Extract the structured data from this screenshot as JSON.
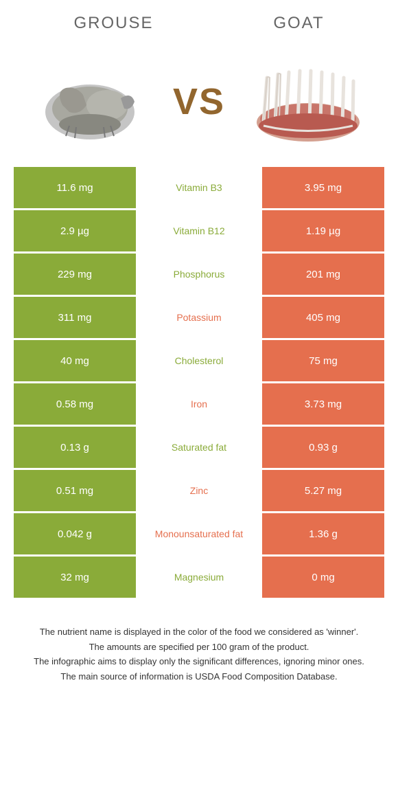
{
  "colors": {
    "green": "#8aab39",
    "orange": "#e56f4e",
    "text_muted": "#666666"
  },
  "header": {
    "left": "GROUSE",
    "right": "GOAT",
    "vs": "VS"
  },
  "rows": [
    {
      "left": "11.6 mg",
      "center": "Vitamin B3",
      "right": "3.95 mg",
      "winner": "left"
    },
    {
      "left": "2.9 µg",
      "center": "Vitamin B12",
      "right": "1.19 µg",
      "winner": "left"
    },
    {
      "left": "229 mg",
      "center": "Phosphorus",
      "right": "201 mg",
      "winner": "left"
    },
    {
      "left": "311 mg",
      "center": "Potassium",
      "right": "405 mg",
      "winner": "right"
    },
    {
      "left": "40 mg",
      "center": "Cholesterol",
      "right": "75 mg",
      "winner": "left"
    },
    {
      "left": "0.58 mg",
      "center": "Iron",
      "right": "3.73 mg",
      "winner": "right"
    },
    {
      "left": "0.13 g",
      "center": "Saturated fat",
      "right": "0.93 g",
      "winner": "left"
    },
    {
      "left": "0.51 mg",
      "center": "Zinc",
      "right": "5.27 mg",
      "winner": "right"
    },
    {
      "left": "0.042 g",
      "center": "Monounsaturated fat",
      "right": "1.36 g",
      "winner": "right"
    },
    {
      "left": "32 mg",
      "center": "Magnesium",
      "right": "0 mg",
      "winner": "left"
    }
  ],
  "footer": {
    "line1": "The nutrient name is displayed in the color of the food we considered as 'winner'.",
    "line2": "The amounts are specified per 100 gram of the product.",
    "line3": "The infographic aims to display only the significant differences, ignoring minor ones.",
    "line4": "The main source of information is USDA Food Composition Database."
  }
}
